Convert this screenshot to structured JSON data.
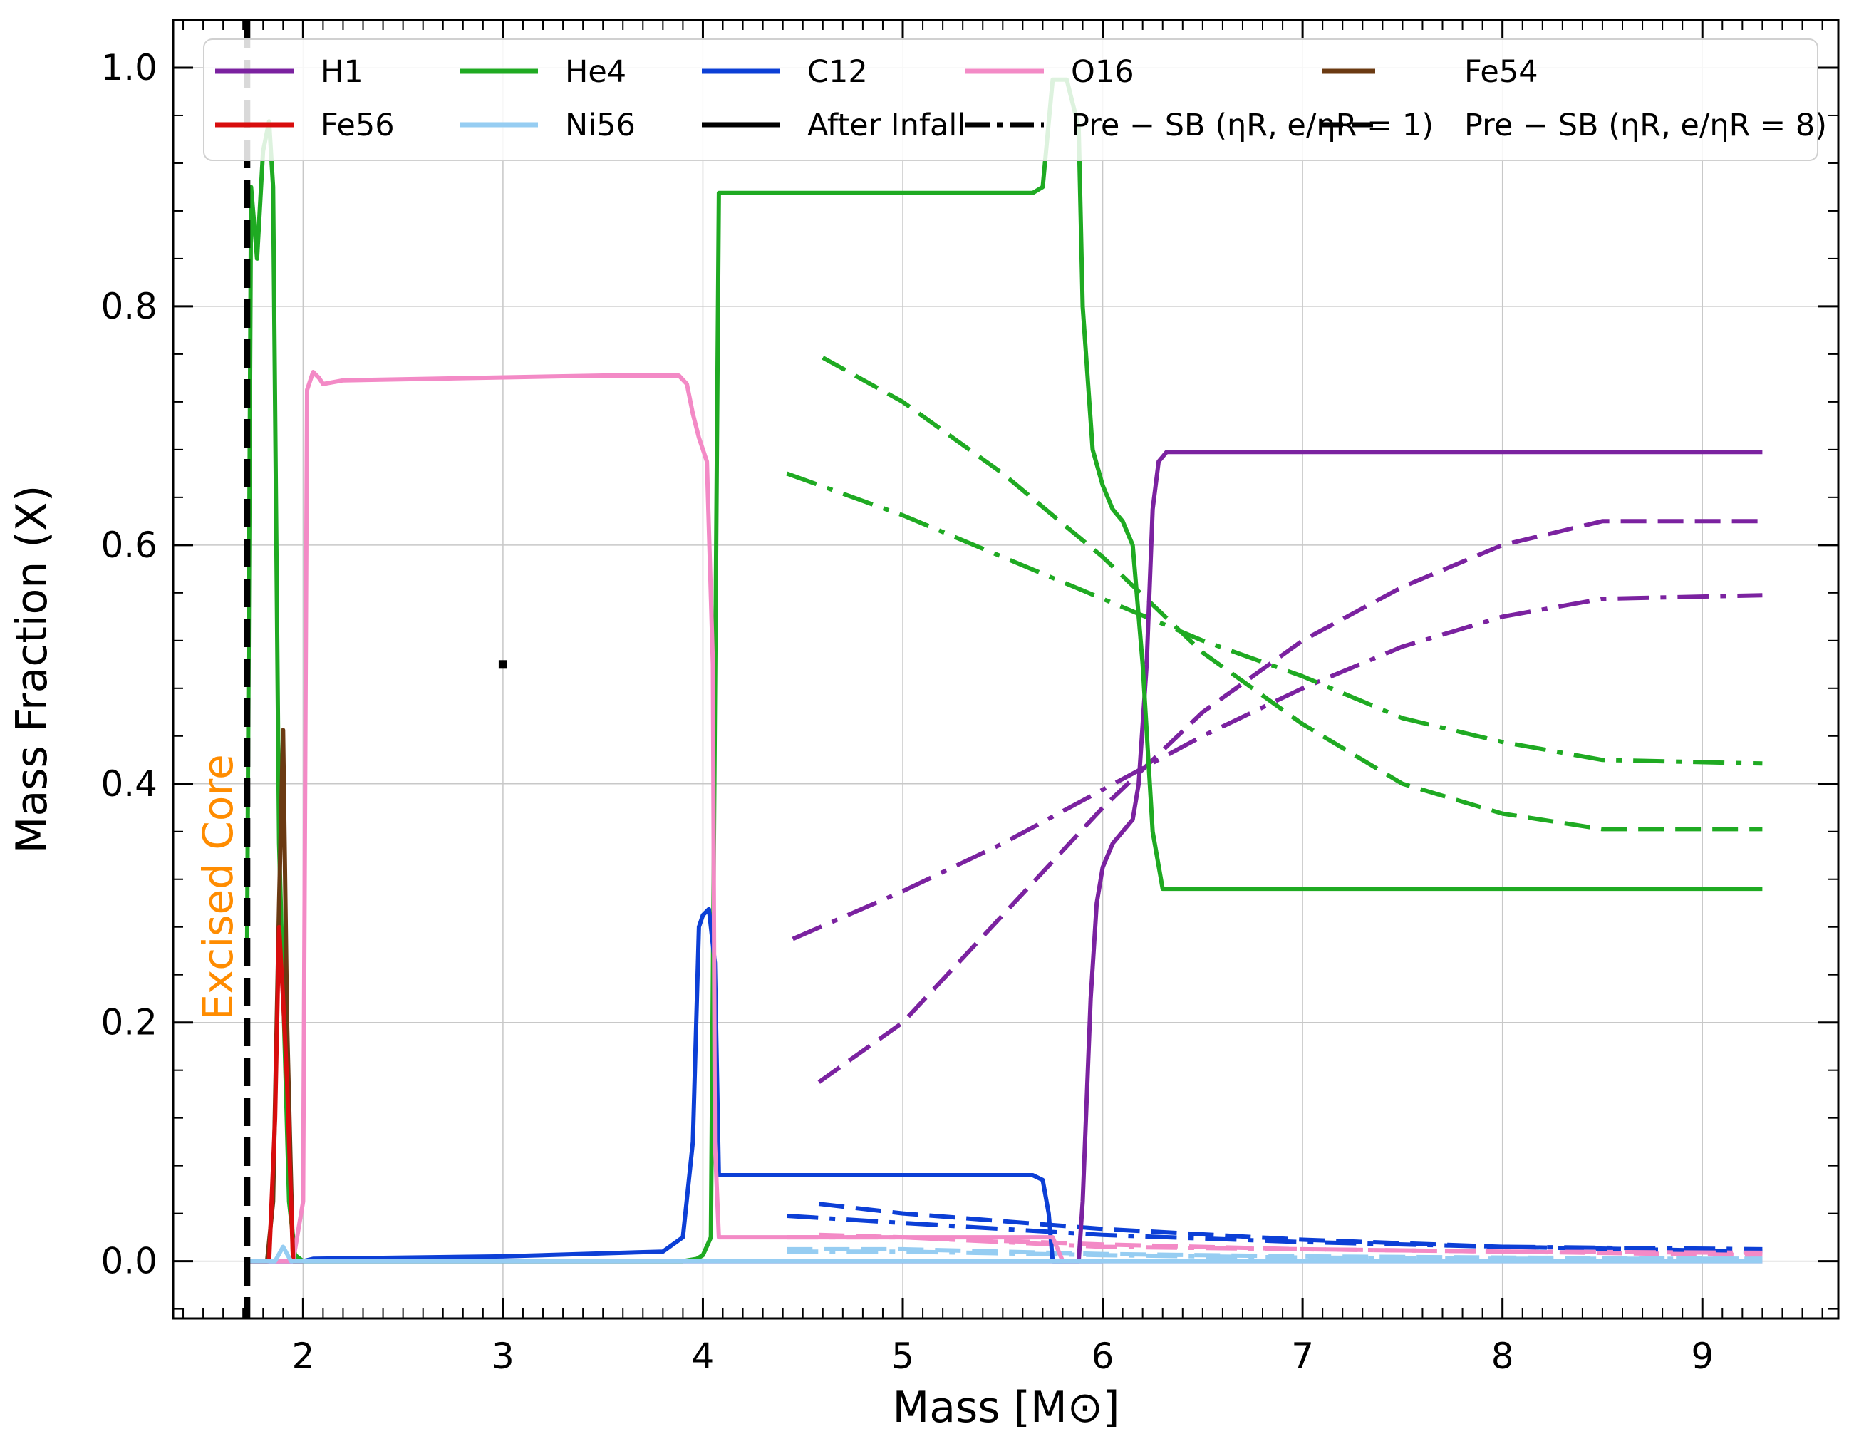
{
  "chart_data": {
    "type": "line",
    "xlabel": "Mass [M⊙]",
    "ylabel": "Mass Fraction (X)",
    "xlim": [
      1.35,
      9.68
    ],
    "ylim": [
      -0.048,
      1.04
    ],
    "x_ticks": [
      "2",
      "3",
      "4",
      "5",
      "6",
      "7",
      "8",
      "9"
    ],
    "y_ticks": [
      "0.0",
      "0.2",
      "0.4",
      "0.6",
      "0.8",
      "1.0"
    ],
    "grid": true,
    "legend_position": "top",
    "annotation": {
      "text": "Excised Core",
      "color": "#ff8c00"
    },
    "excised_core_mass": 1.72,
    "colors": {
      "H1": "#7b22a0",
      "He4": "#1faa22",
      "C12": "#0c3fd6",
      "O16": "#f38ac6",
      "Fe54": "#6b3a12",
      "Fe56": "#d80d0d",
      "Ni56": "#96cdf2",
      "black": "#000000"
    },
    "legend": [
      {
        "label": "H1",
        "color": "#7b22a0",
        "style": "solid"
      },
      {
        "label": "He4",
        "color": "#1faa22",
        "style": "solid"
      },
      {
        "label": "C12",
        "color": "#0c3fd6",
        "style": "solid"
      },
      {
        "label": "O16",
        "color": "#f38ac6",
        "style": "solid"
      },
      {
        "label": "Fe54",
        "color": "#6b3a12",
        "style": "solid"
      },
      {
        "label": "Fe56",
        "color": "#d80d0d",
        "style": "solid"
      },
      {
        "label": "Ni56",
        "color": "#96cdf2",
        "style": "solid"
      },
      {
        "label": "After Infall",
        "color": "#000000",
        "style": "solid"
      },
      {
        "label": "Pre − SB (ηR, e/ηR = 1)",
        "color": "#000000",
        "style": "dashdot"
      },
      {
        "label": "Pre − SB (ηR, e/ηR = 8)",
        "color": "#000000",
        "style": "dashed"
      }
    ],
    "series": [
      {
        "name": "H1",
        "style": "solid",
        "x": [
          1.72,
          5.88,
          5.9,
          5.94,
          5.97,
          6.0,
          6.05,
          6.1,
          6.15,
          6.18,
          6.22,
          6.25,
          6.28,
          6.32,
          9.3
        ],
        "y": [
          0.0,
          0.0,
          0.05,
          0.22,
          0.3,
          0.33,
          0.35,
          0.36,
          0.37,
          0.4,
          0.5,
          0.63,
          0.67,
          0.678,
          0.678
        ]
      },
      {
        "name": "He4",
        "style": "solid",
        "x": [
          1.72,
          1.74,
          1.77,
          1.8,
          1.83,
          1.85,
          1.88,
          1.93,
          1.96,
          2.0,
          3.9,
          3.97,
          4.0,
          4.04,
          4.08,
          5.65,
          5.7,
          5.75,
          5.82,
          5.88,
          5.9,
          5.95,
          6.0,
          6.05,
          6.1,
          6.15,
          6.2,
          6.25,
          6.3,
          9.3
        ],
        "y": [
          0.26,
          0.9,
          0.84,
          0.93,
          0.955,
          0.9,
          0.35,
          0.05,
          0.005,
          0.0,
          0.0,
          0.002,
          0.005,
          0.02,
          0.895,
          0.895,
          0.9,
          0.99,
          0.99,
          0.95,
          0.8,
          0.68,
          0.65,
          0.63,
          0.62,
          0.6,
          0.5,
          0.36,
          0.312,
          0.312
        ]
      },
      {
        "name": "C12",
        "style": "solid",
        "x": [
          1.72,
          2.0,
          2.05,
          3.0,
          3.8,
          3.9,
          3.95,
          3.98,
          4.0,
          4.03,
          4.06,
          4.08,
          5.65,
          5.7,
          5.73,
          5.75,
          6.0
        ],
        "y": [
          0.0,
          0.0,
          0.002,
          0.004,
          0.008,
          0.02,
          0.1,
          0.28,
          0.29,
          0.295,
          0.25,
          0.072,
          0.072,
          0.068,
          0.04,
          0.0,
          0.0
        ]
      },
      {
        "name": "O16",
        "style": "solid",
        "x": [
          1.72,
          1.95,
          2.0,
          2.02,
          2.05,
          2.08,
          2.1,
          2.2,
          3.5,
          3.88,
          3.92,
          3.95,
          3.98,
          4.02,
          4.05,
          4.06,
          4.08,
          5.75,
          5.8,
          9.3
        ],
        "y": [
          0.0,
          0.0,
          0.05,
          0.73,
          0.745,
          0.74,
          0.735,
          0.738,
          0.742,
          0.742,
          0.735,
          0.71,
          0.69,
          0.67,
          0.5,
          0.1,
          0.02,
          0.02,
          0.0,
          0.0
        ]
      },
      {
        "name": "Fe54",
        "style": "solid",
        "x": [
          1.72,
          1.82,
          1.85,
          1.88,
          1.9,
          1.92,
          1.95,
          2.0
        ],
        "y": [
          0.0,
          0.0,
          0.05,
          0.3,
          0.445,
          0.2,
          0.0,
          0.0
        ]
      },
      {
        "name": "Fe56",
        "style": "solid",
        "x": [
          1.72,
          1.83,
          1.86,
          1.88,
          1.9,
          1.92,
          1.95,
          2.0
        ],
        "y": [
          0.0,
          0.0,
          0.12,
          0.28,
          0.22,
          0.15,
          0.0,
          0.0
        ]
      },
      {
        "name": "Ni56",
        "style": "solid",
        "x": [
          1.72,
          1.86,
          1.9,
          1.94,
          2.0,
          9.3
        ],
        "y": [
          0.0,
          0.0,
          0.012,
          0.0,
          0.0,
          0.0
        ]
      },
      {
        "name": "H1",
        "style": "dashdot",
        "x": [
          4.45,
          5.0,
          5.5,
          6.0,
          6.5,
          7.0,
          7.5,
          8.0,
          8.5,
          9.3
        ],
        "y": [
          0.27,
          0.31,
          0.35,
          0.395,
          0.44,
          0.48,
          0.515,
          0.54,
          0.555,
          0.558
        ]
      },
      {
        "name": "He4",
        "style": "dashdot",
        "x": [
          4.42,
          5.0,
          5.5,
          6.0,
          6.5,
          7.0,
          7.5,
          8.0,
          8.5,
          9.3
        ],
        "y": [
          0.66,
          0.625,
          0.59,
          0.555,
          0.52,
          0.49,
          0.455,
          0.435,
          0.42,
          0.417
        ]
      },
      {
        "name": "C12",
        "style": "dashdot",
        "x": [
          4.42,
          5.0,
          6.0,
          7.0,
          8.0,
          9.3
        ],
        "y": [
          0.038,
          0.032,
          0.022,
          0.016,
          0.012,
          0.01
        ]
      },
      {
        "name": "O16",
        "style": "dashdot",
        "x": [
          4.42,
          5.0,
          6.0,
          7.0,
          8.0,
          9.3
        ],
        "y": [
          0.02,
          0.02,
          0.012,
          0.01,
          0.008,
          0.007
        ]
      },
      {
        "name": "Ni56",
        "style": "dashdot",
        "x": [
          4.42,
          5.0,
          6.0,
          7.0,
          8.0,
          9.3
        ],
        "y": [
          0.008,
          0.008,
          0.005,
          0.003,
          0.002,
          0.002
        ]
      },
      {
        "name": "H1",
        "style": "dashed",
        "x": [
          4.58,
          5.0,
          5.5,
          6.0,
          6.5,
          7.0,
          7.5,
          8.0,
          8.5,
          9.3
        ],
        "y": [
          0.15,
          0.2,
          0.29,
          0.38,
          0.46,
          0.52,
          0.565,
          0.6,
          0.62,
          0.62
        ]
      },
      {
        "name": "He4",
        "style": "dashed",
        "x": [
          4.6,
          5.0,
          5.5,
          6.0,
          6.5,
          7.0,
          7.5,
          8.0,
          8.5,
          9.3
        ],
        "y": [
          0.757,
          0.72,
          0.66,
          0.59,
          0.51,
          0.45,
          0.4,
          0.375,
          0.362,
          0.362
        ]
      },
      {
        "name": "C12",
        "style": "dashed",
        "x": [
          4.58,
          5.0,
          6.0,
          7.0,
          8.0,
          9.3
        ],
        "y": [
          0.048,
          0.04,
          0.027,
          0.018,
          0.012,
          0.008
        ]
      },
      {
        "name": "O16",
        "style": "dashed",
        "x": [
          4.58,
          5.0,
          6.0,
          7.0,
          8.0,
          9.3
        ],
        "y": [
          0.022,
          0.02,
          0.014,
          0.01,
          0.008,
          0.005
        ]
      },
      {
        "name": "Ni56",
        "style": "dashed",
        "x": [
          4.42,
          5.0,
          6.0,
          7.0,
          8.0,
          9.3
        ],
        "y": [
          0.01,
          0.01,
          0.006,
          0.004,
          0.003,
          0.002
        ]
      }
    ]
  }
}
